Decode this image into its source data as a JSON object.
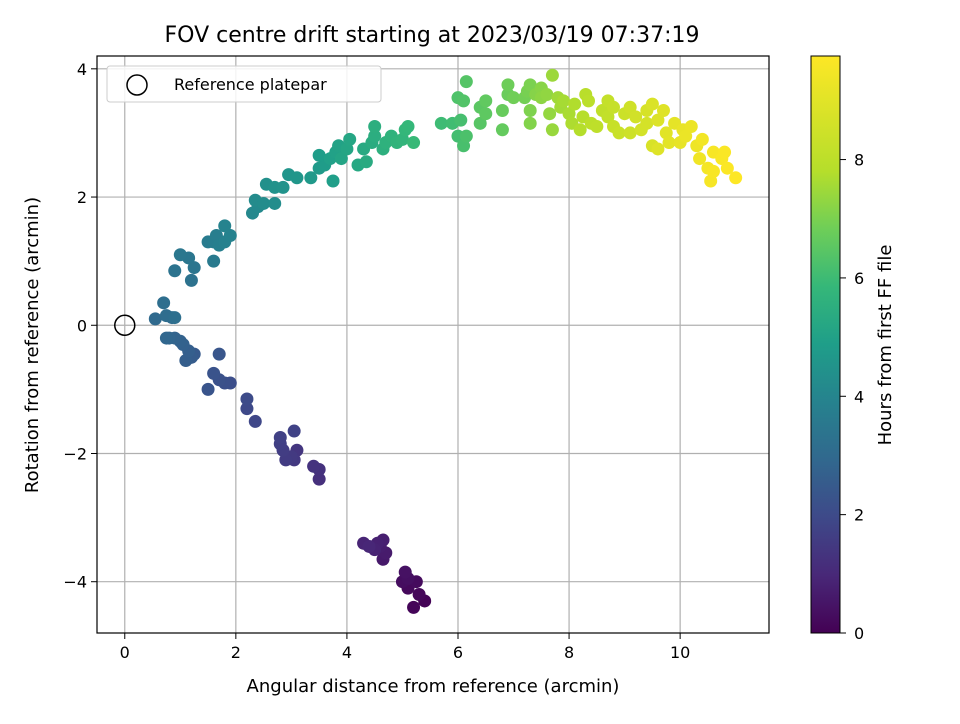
{
  "chart_data": {
    "type": "scatter",
    "title": "FOV centre drift starting at 2023/03/19 07:37:19",
    "xlabel": "Angular distance from reference (arcmin)",
    "ylabel": "Rotation from reference (arcmin)",
    "xlim": [
      -0.5,
      11.6
    ],
    "ylim": [
      -4.8,
      4.2
    ],
    "x_ticks": [
      0,
      2,
      4,
      6,
      8,
      10
    ],
    "y_ticks": [
      -4,
      -2,
      0,
      2,
      4
    ],
    "grid": true,
    "colormap": "viridis",
    "colorbar": {
      "label": "Hours from first FF file",
      "range": [
        0,
        9.75
      ],
      "ticks": [
        0,
        2,
        4,
        6,
        8
      ]
    },
    "legend": {
      "position": "top-left",
      "entries": [
        {
          "label": "Reference platepar",
          "marker": "open-circle"
        }
      ]
    },
    "reference_point": {
      "x": 0,
      "y": 0
    },
    "points": [
      {
        "x": 5.4,
        "y": -4.3,
        "t": 0.05
      },
      {
        "x": 5.2,
        "y": -4.4,
        "t": 0.1
      },
      {
        "x": 5.3,
        "y": -4.2,
        "t": 0.15
      },
      {
        "x": 5.1,
        "y": -4.1,
        "t": 0.2
      },
      {
        "x": 5.25,
        "y": -4.0,
        "t": 0.25
      },
      {
        "x": 5.0,
        "y": -4.0,
        "t": 0.3
      },
      {
        "x": 5.1,
        "y": -3.95,
        "t": 0.35
      },
      {
        "x": 5.05,
        "y": -3.85,
        "t": 0.4
      },
      {
        "x": 4.65,
        "y": -3.65,
        "t": 0.6
      },
      {
        "x": 4.7,
        "y": -3.55,
        "t": 0.65
      },
      {
        "x": 4.6,
        "y": -3.45,
        "t": 0.7
      },
      {
        "x": 4.65,
        "y": -3.35,
        "t": 0.75
      },
      {
        "x": 4.55,
        "y": -3.4,
        "t": 0.8
      },
      {
        "x": 4.5,
        "y": -3.5,
        "t": 0.85
      },
      {
        "x": 4.3,
        "y": -3.4,
        "t": 0.9
      },
      {
        "x": 4.4,
        "y": -3.45,
        "t": 0.95
      },
      {
        "x": 3.5,
        "y": -2.4,
        "t": 1.2
      },
      {
        "x": 3.5,
        "y": -2.25,
        "t": 1.25
      },
      {
        "x": 3.4,
        "y": -2.2,
        "t": 1.3
      },
      {
        "x": 3.1,
        "y": -1.95,
        "t": 1.4
      },
      {
        "x": 3.05,
        "y": -2.1,
        "t": 1.45
      },
      {
        "x": 3.0,
        "y": -2.05,
        "t": 1.5
      },
      {
        "x": 2.9,
        "y": -2.1,
        "t": 1.55
      },
      {
        "x": 2.85,
        "y": -1.95,
        "t": 1.6
      },
      {
        "x": 2.8,
        "y": -1.85,
        "t": 1.65
      },
      {
        "x": 2.8,
        "y": -1.75,
        "t": 1.7
      },
      {
        "x": 3.05,
        "y": -1.65,
        "t": 1.75
      },
      {
        "x": 2.35,
        "y": -1.5,
        "t": 1.9
      },
      {
        "x": 2.2,
        "y": -1.3,
        "t": 1.95
      },
      {
        "x": 2.2,
        "y": -1.15,
        "t": 2.0
      },
      {
        "x": 1.9,
        "y": -0.9,
        "t": 2.1
      },
      {
        "x": 1.8,
        "y": -0.9,
        "t": 2.15
      },
      {
        "x": 1.7,
        "y": -0.85,
        "t": 2.2
      },
      {
        "x": 1.6,
        "y": -0.75,
        "t": 2.25
      },
      {
        "x": 1.5,
        "y": -1.0,
        "t": 2.3
      },
      {
        "x": 1.7,
        "y": -0.45,
        "t": 2.35
      },
      {
        "x": 1.25,
        "y": -0.45,
        "t": 2.5
      },
      {
        "x": 1.2,
        "y": -0.5,
        "t": 2.55
      },
      {
        "x": 1.1,
        "y": -0.55,
        "t": 2.6
      },
      {
        "x": 1.15,
        "y": -0.4,
        "t": 2.65
      },
      {
        "x": 1.05,
        "y": -0.3,
        "t": 2.7
      },
      {
        "x": 1.0,
        "y": -0.25,
        "t": 2.75
      },
      {
        "x": 0.9,
        "y": -0.2,
        "t": 2.8
      },
      {
        "x": 0.8,
        "y": -0.2,
        "t": 2.85
      },
      {
        "x": 0.75,
        "y": -0.2,
        "t": 2.9
      },
      {
        "x": 0.55,
        "y": 0.1,
        "t": 3.0
      },
      {
        "x": 0.85,
        "y": 0.12,
        "t": 3.05
      },
      {
        "x": 0.75,
        "y": 0.15,
        "t": 3.1
      },
      {
        "x": 0.7,
        "y": 0.35,
        "t": 3.15
      },
      {
        "x": 0.9,
        "y": 0.12,
        "t": 3.2
      },
      {
        "x": 1.2,
        "y": 0.7,
        "t": 3.3
      },
      {
        "x": 0.9,
        "y": 0.85,
        "t": 3.35
      },
      {
        "x": 1.25,
        "y": 0.9,
        "t": 3.4
      },
      {
        "x": 1.15,
        "y": 1.05,
        "t": 3.45
      },
      {
        "x": 1.0,
        "y": 1.1,
        "t": 3.5
      },
      {
        "x": 1.6,
        "y": 1.0,
        "t": 3.6
      },
      {
        "x": 1.5,
        "y": 1.3,
        "t": 3.65
      },
      {
        "x": 1.6,
        "y": 1.3,
        "t": 3.7
      },
      {
        "x": 1.65,
        "y": 1.4,
        "t": 3.75
      },
      {
        "x": 1.7,
        "y": 1.25,
        "t": 3.8
      },
      {
        "x": 1.8,
        "y": 1.3,
        "t": 3.85
      },
      {
        "x": 1.9,
        "y": 1.4,
        "t": 3.9
      },
      {
        "x": 1.8,
        "y": 1.55,
        "t": 3.95
      },
      {
        "x": 2.3,
        "y": 1.75,
        "t": 4.1
      },
      {
        "x": 2.4,
        "y": 1.85,
        "t": 4.15
      },
      {
        "x": 2.35,
        "y": 1.95,
        "t": 4.2
      },
      {
        "x": 2.5,
        "y": 1.9,
        "t": 4.25
      },
      {
        "x": 2.7,
        "y": 1.9,
        "t": 4.3
      },
      {
        "x": 2.55,
        "y": 2.2,
        "t": 4.4
      },
      {
        "x": 2.7,
        "y": 2.15,
        "t": 4.45
      },
      {
        "x": 2.85,
        "y": 2.15,
        "t": 4.5
      },
      {
        "x": 2.95,
        "y": 2.35,
        "t": 4.55
      },
      {
        "x": 3.1,
        "y": 2.3,
        "t": 4.6
      },
      {
        "x": 3.35,
        "y": 2.3,
        "t": 4.7
      },
      {
        "x": 3.5,
        "y": 2.45,
        "t": 4.75
      },
      {
        "x": 3.6,
        "y": 2.5,
        "t": 4.8
      },
      {
        "x": 3.5,
        "y": 2.65,
        "t": 4.85
      },
      {
        "x": 3.75,
        "y": 2.25,
        "t": 4.9
      },
      {
        "x": 3.7,
        "y": 2.6,
        "t": 4.95
      },
      {
        "x": 3.8,
        "y": 2.7,
        "t": 5.0
      },
      {
        "x": 3.85,
        "y": 2.8,
        "t": 5.05
      },
      {
        "x": 3.9,
        "y": 2.6,
        "t": 5.1
      },
      {
        "x": 4.0,
        "y": 2.75,
        "t": 5.15
      },
      {
        "x": 4.05,
        "y": 2.9,
        "t": 5.2
      },
      {
        "x": 4.2,
        "y": 2.5,
        "t": 5.25
      },
      {
        "x": 4.3,
        "y": 2.75,
        "t": 5.3
      },
      {
        "x": 4.35,
        "y": 2.55,
        "t": 5.35
      },
      {
        "x": 4.45,
        "y": 2.85,
        "t": 5.4
      },
      {
        "x": 4.5,
        "y": 2.95,
        "t": 5.45
      },
      {
        "x": 4.5,
        "y": 3.1,
        "t": 5.5
      },
      {
        "x": 4.65,
        "y": 2.75,
        "t": 5.55
      },
      {
        "x": 4.7,
        "y": 2.85,
        "t": 5.6
      },
      {
        "x": 4.8,
        "y": 2.95,
        "t": 5.65
      },
      {
        "x": 4.9,
        "y": 2.85,
        "t": 5.7
      },
      {
        "x": 5.0,
        "y": 2.9,
        "t": 5.75
      },
      {
        "x": 5.05,
        "y": 3.05,
        "t": 5.8
      },
      {
        "x": 5.1,
        "y": 3.1,
        "t": 5.85
      },
      {
        "x": 5.2,
        "y": 2.85,
        "t": 5.9
      },
      {
        "x": 5.7,
        "y": 3.15,
        "t": 6.0
      },
      {
        "x": 5.9,
        "y": 3.15,
        "t": 6.05
      },
      {
        "x": 6.0,
        "y": 2.95,
        "t": 6.1
      },
      {
        "x": 6.05,
        "y": 3.2,
        "t": 6.15
      },
      {
        "x": 6.1,
        "y": 2.8,
        "t": 6.2
      },
      {
        "x": 6.15,
        "y": 2.95,
        "t": 6.25
      },
      {
        "x": 6.0,
        "y": 3.55,
        "t": 6.3
      },
      {
        "x": 6.1,
        "y": 3.5,
        "t": 6.35
      },
      {
        "x": 6.15,
        "y": 3.8,
        "t": 6.4
      },
      {
        "x": 6.4,
        "y": 3.15,
        "t": 6.45
      },
      {
        "x": 6.4,
        "y": 3.4,
        "t": 6.5
      },
      {
        "x": 6.5,
        "y": 3.3,
        "t": 6.55
      },
      {
        "x": 6.5,
        "y": 3.5,
        "t": 6.6
      },
      {
        "x": 6.8,
        "y": 3.05,
        "t": 6.65
      },
      {
        "x": 6.8,
        "y": 3.35,
        "t": 6.7
      },
      {
        "x": 6.9,
        "y": 3.6,
        "t": 6.75
      },
      {
        "x": 6.9,
        "y": 3.75,
        "t": 6.8
      },
      {
        "x": 7.0,
        "y": 3.55,
        "t": 6.85
      },
      {
        "x": 7.2,
        "y": 3.55,
        "t": 6.9
      },
      {
        "x": 7.25,
        "y": 3.65,
        "t": 6.95
      },
      {
        "x": 7.3,
        "y": 3.75,
        "t": 7.0
      },
      {
        "x": 7.3,
        "y": 3.35,
        "t": 7.05
      },
      {
        "x": 7.3,
        "y": 3.15,
        "t": 7.1
      },
      {
        "x": 7.4,
        "y": 3.6,
        "t": 7.15
      },
      {
        "x": 7.5,
        "y": 3.7,
        "t": 7.2
      },
      {
        "x": 7.5,
        "y": 3.55,
        "t": 7.25
      },
      {
        "x": 7.6,
        "y": 3.6,
        "t": 7.3
      },
      {
        "x": 7.65,
        "y": 3.3,
        "t": 7.35
      },
      {
        "x": 7.7,
        "y": 3.05,
        "t": 7.4
      },
      {
        "x": 7.7,
        "y": 3.9,
        "t": 7.45
      },
      {
        "x": 7.8,
        "y": 3.55,
        "t": 7.5
      },
      {
        "x": 7.85,
        "y": 3.4,
        "t": 7.55
      },
      {
        "x": 7.9,
        "y": 3.5,
        "t": 7.6
      },
      {
        "x": 8.0,
        "y": 3.3,
        "t": 7.65
      },
      {
        "x": 8.05,
        "y": 3.15,
        "t": 7.7
      },
      {
        "x": 8.1,
        "y": 3.45,
        "t": 7.75
      },
      {
        "x": 8.2,
        "y": 3.05,
        "t": 7.8
      },
      {
        "x": 8.25,
        "y": 3.25,
        "t": 7.85
      },
      {
        "x": 8.3,
        "y": 3.6,
        "t": 7.9
      },
      {
        "x": 8.35,
        "y": 3.5,
        "t": 7.95
      },
      {
        "x": 8.4,
        "y": 3.15,
        "t": 8.0
      },
      {
        "x": 8.5,
        "y": 3.1,
        "t": 8.05
      },
      {
        "x": 8.6,
        "y": 3.35,
        "t": 8.1
      },
      {
        "x": 8.7,
        "y": 3.25,
        "t": 8.15
      },
      {
        "x": 8.7,
        "y": 3.5,
        "t": 8.2
      },
      {
        "x": 8.8,
        "y": 3.4,
        "t": 8.25
      },
      {
        "x": 8.8,
        "y": 3.1,
        "t": 8.3
      },
      {
        "x": 8.9,
        "y": 3.0,
        "t": 8.35
      },
      {
        "x": 9.0,
        "y": 3.3,
        "t": 8.4
      },
      {
        "x": 9.1,
        "y": 3.0,
        "t": 8.45
      },
      {
        "x": 9.1,
        "y": 3.4,
        "t": 8.5
      },
      {
        "x": 9.2,
        "y": 3.25,
        "t": 8.55
      },
      {
        "x": 9.3,
        "y": 3.05,
        "t": 8.6
      },
      {
        "x": 9.4,
        "y": 3.15,
        "t": 8.65
      },
      {
        "x": 9.4,
        "y": 3.35,
        "t": 8.7
      },
      {
        "x": 9.5,
        "y": 2.8,
        "t": 8.75
      },
      {
        "x": 9.5,
        "y": 3.45,
        "t": 8.8
      },
      {
        "x": 9.6,
        "y": 3.2,
        "t": 8.85
      },
      {
        "x": 9.6,
        "y": 2.75,
        "t": 8.9
      },
      {
        "x": 9.7,
        "y": 3.35,
        "t": 8.95
      },
      {
        "x": 9.75,
        "y": 3.0,
        "t": 9.0
      },
      {
        "x": 9.8,
        "y": 2.85,
        "t": 9.05
      },
      {
        "x": 9.9,
        "y": 3.15,
        "t": 9.1
      },
      {
        "x": 10.0,
        "y": 2.85,
        "t": 9.15
      },
      {
        "x": 10.05,
        "y": 3.05,
        "t": 9.2
      },
      {
        "x": 10.1,
        "y": 2.95,
        "t": 9.25
      },
      {
        "x": 10.2,
        "y": 3.1,
        "t": 9.3
      },
      {
        "x": 10.3,
        "y": 2.8,
        "t": 9.35
      },
      {
        "x": 10.35,
        "y": 2.6,
        "t": 9.4
      },
      {
        "x": 10.4,
        "y": 2.9,
        "t": 9.45
      },
      {
        "x": 10.5,
        "y": 2.45,
        "t": 9.5
      },
      {
        "x": 10.55,
        "y": 2.25,
        "t": 9.55
      },
      {
        "x": 10.6,
        "y": 2.7,
        "t": 9.6
      },
      {
        "x": 10.6,
        "y": 2.4,
        "t": 9.62
      },
      {
        "x": 10.75,
        "y": 2.6,
        "t": 9.65
      },
      {
        "x": 10.8,
        "y": 2.7,
        "t": 9.68
      },
      {
        "x": 10.85,
        "y": 2.45,
        "t": 9.7
      },
      {
        "x": 11.0,
        "y": 2.3,
        "t": 9.75
      }
    ]
  }
}
